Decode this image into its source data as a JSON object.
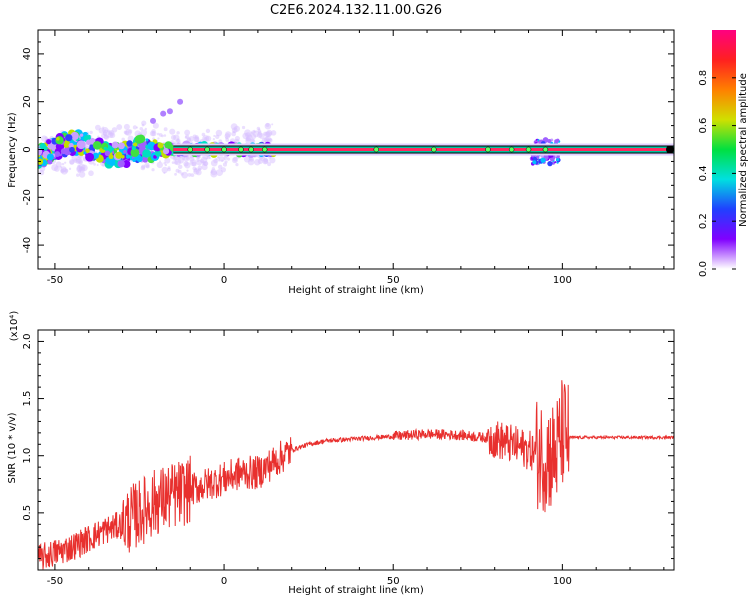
{
  "title": "C2E6.2024.132.11.00.G26",
  "colors": {
    "snr_line": "#e8302e",
    "background": "#ffffff",
    "trace": "#e8302e"
  },
  "colorbar": {
    "label": "Normalized spectral amplitude",
    "ticks": [
      "0.0",
      "0.2",
      "0.4",
      "0.6",
      "0.8"
    ],
    "tick_values": [
      0.0,
      0.2,
      0.4,
      0.6,
      0.8
    ],
    "range": [
      0,
      1
    ],
    "stops": [
      "#ffffff",
      "#8000ff",
      "#2040ff",
      "#00e0e0",
      "#00e040",
      "#d0e000",
      "#ff8000",
      "#ff2020",
      "#ff0080"
    ]
  },
  "chart_data": [
    {
      "type": "heatmap",
      "name": "spectrogram",
      "xlabel": "Height of straight line (km)",
      "ylabel": "Frequency (Hz)",
      "xlim": [
        -55,
        133
      ],
      "ylim": [
        -50,
        50
      ],
      "xticks": [
        "-50",
        "0",
        "50",
        "100"
      ],
      "xtick_values": [
        -50,
        0,
        50,
        100
      ],
      "yticks": [
        "-40",
        "-20",
        "0",
        "20",
        "40"
      ],
      "ytick_values": [
        -40,
        -20,
        0,
        20,
        40
      ],
      "description_values": {
        "main_band_frequency": 0,
        "scatter_region_x": [
          -55,
          15
        ],
        "disturbance_x": 97
      }
    },
    {
      "type": "line",
      "name": "snr",
      "xlabel": "Height of straight line (km)",
      "ylabel": "SNR (10 * v/v)",
      "yscale_label": "(x10⁴)",
      "xlim": [
        -55,
        133
      ],
      "ylim": [
        0,
        21000
      ],
      "xticks": [
        "-50",
        "0",
        "50",
        "100"
      ],
      "xtick_values": [
        -50,
        0,
        50,
        100
      ],
      "yticks": [
        "0.5",
        "1.0",
        "1.5",
        "2.0"
      ],
      "ytick_values": [
        5000,
        10000,
        15000,
        20000
      ],
      "envelope": {
        "x": [
          -55,
          -45,
          -35,
          -30,
          -25,
          -20,
          -15,
          -10,
          -5,
          0,
          5,
          10,
          15,
          20,
          25,
          30,
          40,
          50,
          60,
          70,
          80,
          85,
          90,
          95,
          98,
          100,
          102,
          110,
          120,
          133
        ],
        "y": [
          1000,
          2000,
          3500,
          4000,
          5000,
          6000,
          6500,
          7000,
          7500,
          8000,
          8500,
          8500,
          9500,
          10500,
          11000,
          11300,
          11500,
          11700,
          11900,
          11800,
          11500,
          11000,
          10500,
          10000,
          10000,
          12000,
          11600,
          11600,
          11600,
          11600
        ]
      }
    }
  ]
}
